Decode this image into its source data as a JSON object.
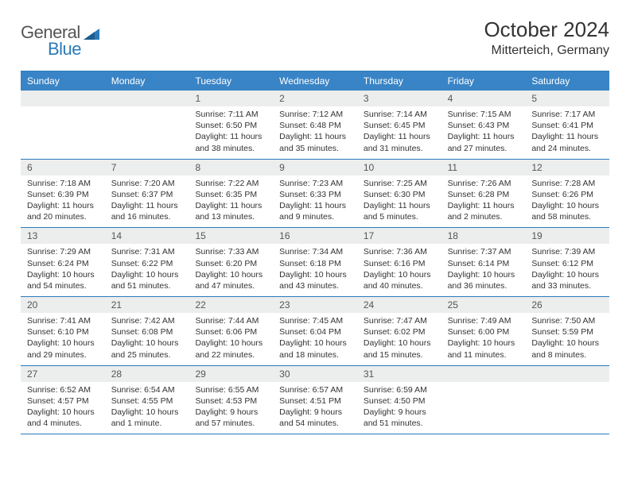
{
  "brand": {
    "part1": "General",
    "part2": "Blue",
    "accent_color": "#2a7ab9"
  },
  "title": "October 2024",
  "location": "Mitterteich, Germany",
  "header_bg": "#3984c6",
  "header_text_color": "#ffffff",
  "daynum_bg": "#eceded",
  "rule_color": "#2a7ab9",
  "body_text_color": "#333333",
  "days_of_week": [
    "Sunday",
    "Monday",
    "Tuesday",
    "Wednesday",
    "Thursday",
    "Friday",
    "Saturday"
  ],
  "weeks": [
    [
      {
        "n": "",
        "sr": "",
        "ss": "",
        "d1": "",
        "d2": ""
      },
      {
        "n": "",
        "sr": "",
        "ss": "",
        "d1": "",
        "d2": ""
      },
      {
        "n": "1",
        "sr": "Sunrise: 7:11 AM",
        "ss": "Sunset: 6:50 PM",
        "d1": "Daylight: 11 hours",
        "d2": "and 38 minutes."
      },
      {
        "n": "2",
        "sr": "Sunrise: 7:12 AM",
        "ss": "Sunset: 6:48 PM",
        "d1": "Daylight: 11 hours",
        "d2": "and 35 minutes."
      },
      {
        "n": "3",
        "sr": "Sunrise: 7:14 AM",
        "ss": "Sunset: 6:45 PM",
        "d1": "Daylight: 11 hours",
        "d2": "and 31 minutes."
      },
      {
        "n": "4",
        "sr": "Sunrise: 7:15 AM",
        "ss": "Sunset: 6:43 PM",
        "d1": "Daylight: 11 hours",
        "d2": "and 27 minutes."
      },
      {
        "n": "5",
        "sr": "Sunrise: 7:17 AM",
        "ss": "Sunset: 6:41 PM",
        "d1": "Daylight: 11 hours",
        "d2": "and 24 minutes."
      }
    ],
    [
      {
        "n": "6",
        "sr": "Sunrise: 7:18 AM",
        "ss": "Sunset: 6:39 PM",
        "d1": "Daylight: 11 hours",
        "d2": "and 20 minutes."
      },
      {
        "n": "7",
        "sr": "Sunrise: 7:20 AM",
        "ss": "Sunset: 6:37 PM",
        "d1": "Daylight: 11 hours",
        "d2": "and 16 minutes."
      },
      {
        "n": "8",
        "sr": "Sunrise: 7:22 AM",
        "ss": "Sunset: 6:35 PM",
        "d1": "Daylight: 11 hours",
        "d2": "and 13 minutes."
      },
      {
        "n": "9",
        "sr": "Sunrise: 7:23 AM",
        "ss": "Sunset: 6:33 PM",
        "d1": "Daylight: 11 hours",
        "d2": "and 9 minutes."
      },
      {
        "n": "10",
        "sr": "Sunrise: 7:25 AM",
        "ss": "Sunset: 6:30 PM",
        "d1": "Daylight: 11 hours",
        "d2": "and 5 minutes."
      },
      {
        "n": "11",
        "sr": "Sunrise: 7:26 AM",
        "ss": "Sunset: 6:28 PM",
        "d1": "Daylight: 11 hours",
        "d2": "and 2 minutes."
      },
      {
        "n": "12",
        "sr": "Sunrise: 7:28 AM",
        "ss": "Sunset: 6:26 PM",
        "d1": "Daylight: 10 hours",
        "d2": "and 58 minutes."
      }
    ],
    [
      {
        "n": "13",
        "sr": "Sunrise: 7:29 AM",
        "ss": "Sunset: 6:24 PM",
        "d1": "Daylight: 10 hours",
        "d2": "and 54 minutes."
      },
      {
        "n": "14",
        "sr": "Sunrise: 7:31 AM",
        "ss": "Sunset: 6:22 PM",
        "d1": "Daylight: 10 hours",
        "d2": "and 51 minutes."
      },
      {
        "n": "15",
        "sr": "Sunrise: 7:33 AM",
        "ss": "Sunset: 6:20 PM",
        "d1": "Daylight: 10 hours",
        "d2": "and 47 minutes."
      },
      {
        "n": "16",
        "sr": "Sunrise: 7:34 AM",
        "ss": "Sunset: 6:18 PM",
        "d1": "Daylight: 10 hours",
        "d2": "and 43 minutes."
      },
      {
        "n": "17",
        "sr": "Sunrise: 7:36 AM",
        "ss": "Sunset: 6:16 PM",
        "d1": "Daylight: 10 hours",
        "d2": "and 40 minutes."
      },
      {
        "n": "18",
        "sr": "Sunrise: 7:37 AM",
        "ss": "Sunset: 6:14 PM",
        "d1": "Daylight: 10 hours",
        "d2": "and 36 minutes."
      },
      {
        "n": "19",
        "sr": "Sunrise: 7:39 AM",
        "ss": "Sunset: 6:12 PM",
        "d1": "Daylight: 10 hours",
        "d2": "and 33 minutes."
      }
    ],
    [
      {
        "n": "20",
        "sr": "Sunrise: 7:41 AM",
        "ss": "Sunset: 6:10 PM",
        "d1": "Daylight: 10 hours",
        "d2": "and 29 minutes."
      },
      {
        "n": "21",
        "sr": "Sunrise: 7:42 AM",
        "ss": "Sunset: 6:08 PM",
        "d1": "Daylight: 10 hours",
        "d2": "and 25 minutes."
      },
      {
        "n": "22",
        "sr": "Sunrise: 7:44 AM",
        "ss": "Sunset: 6:06 PM",
        "d1": "Daylight: 10 hours",
        "d2": "and 22 minutes."
      },
      {
        "n": "23",
        "sr": "Sunrise: 7:45 AM",
        "ss": "Sunset: 6:04 PM",
        "d1": "Daylight: 10 hours",
        "d2": "and 18 minutes."
      },
      {
        "n": "24",
        "sr": "Sunrise: 7:47 AM",
        "ss": "Sunset: 6:02 PM",
        "d1": "Daylight: 10 hours",
        "d2": "and 15 minutes."
      },
      {
        "n": "25",
        "sr": "Sunrise: 7:49 AM",
        "ss": "Sunset: 6:00 PM",
        "d1": "Daylight: 10 hours",
        "d2": "and 11 minutes."
      },
      {
        "n": "26",
        "sr": "Sunrise: 7:50 AM",
        "ss": "Sunset: 5:59 PM",
        "d1": "Daylight: 10 hours",
        "d2": "and 8 minutes."
      }
    ],
    [
      {
        "n": "27",
        "sr": "Sunrise: 6:52 AM",
        "ss": "Sunset: 4:57 PM",
        "d1": "Daylight: 10 hours",
        "d2": "and 4 minutes."
      },
      {
        "n": "28",
        "sr": "Sunrise: 6:54 AM",
        "ss": "Sunset: 4:55 PM",
        "d1": "Daylight: 10 hours",
        "d2": "and 1 minute."
      },
      {
        "n": "29",
        "sr": "Sunrise: 6:55 AM",
        "ss": "Sunset: 4:53 PM",
        "d1": "Daylight: 9 hours",
        "d2": "and 57 minutes."
      },
      {
        "n": "30",
        "sr": "Sunrise: 6:57 AM",
        "ss": "Sunset: 4:51 PM",
        "d1": "Daylight: 9 hours",
        "d2": "and 54 minutes."
      },
      {
        "n": "31",
        "sr": "Sunrise: 6:59 AM",
        "ss": "Sunset: 4:50 PM",
        "d1": "Daylight: 9 hours",
        "d2": "and 51 minutes."
      },
      {
        "n": "",
        "sr": "",
        "ss": "",
        "d1": "",
        "d2": ""
      },
      {
        "n": "",
        "sr": "",
        "ss": "",
        "d1": "",
        "d2": ""
      }
    ]
  ]
}
